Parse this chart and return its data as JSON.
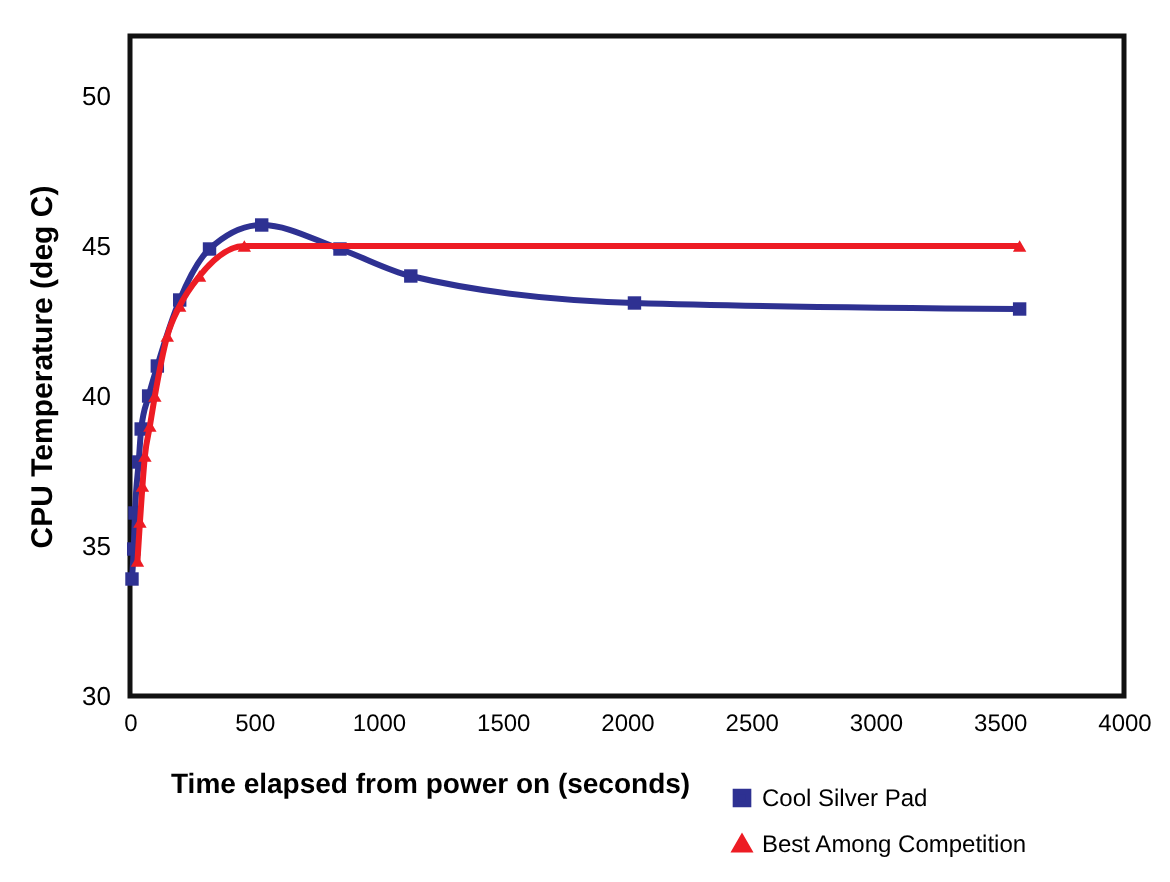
{
  "chart_data": {
    "type": "line",
    "xlabel": "Time elapsed from power on (seconds)",
    "ylabel": "CPU Temperature (deg C)",
    "xlim": [
      0,
      4000
    ],
    "xticks": [
      0,
      500,
      1000,
      1500,
      2000,
      2500,
      3000,
      3500,
      4000
    ],
    "ylim": [
      30,
      52
    ],
    "yticks": [
      30,
      35,
      40,
      45,
      50
    ],
    "grid": false,
    "legend": "bottom right",
    "series": [
      {
        "name": "Cool Silver Pad",
        "color": "#2e3192",
        "marker": "square",
        "x": [
          8,
          15,
          20,
          35,
          45,
          75,
          110,
          200,
          320,
          530,
          845,
          1130,
          2030,
          3580
        ],
        "values": [
          33.9,
          34.9,
          36.1,
          37.8,
          38.9,
          40.0,
          41.0,
          43.2,
          44.9,
          45.7,
          44.9,
          44.0,
          43.1,
          42.9
        ]
      },
      {
        "name": "Best Among Competition",
        "color": "#ed1c24",
        "marker": "triangle",
        "x": [
          30,
          40,
          50,
          60,
          80,
          100,
          150,
          200,
          280,
          460,
          3580
        ],
        "values": [
          34.5,
          35.8,
          37.0,
          38.0,
          39.0,
          40.0,
          42.0,
          43.0,
          44.0,
          45.0,
          45.0
        ]
      }
    ]
  }
}
